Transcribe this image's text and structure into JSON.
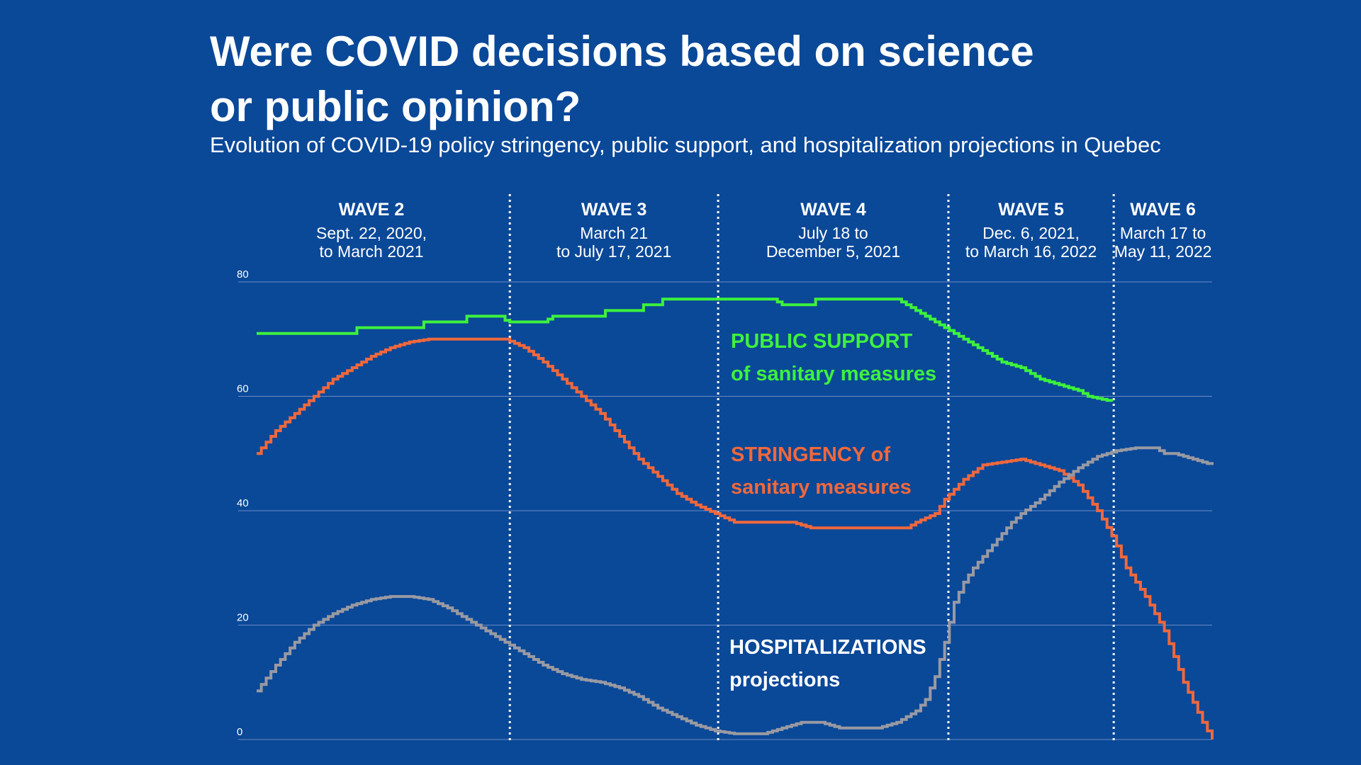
{
  "title_line1": "Were COVID decisions based on science",
  "title_line2": "or public opinion?",
  "subtitle": "Evolution of COVID-19 policy stringency, public support, and hospitalization projections in Quebec",
  "colors": {
    "background": "#0a4898",
    "support": "#3df23d",
    "stringency": "#f0683c",
    "hospitalizations": "#9a9aa2",
    "gridline": "#6b8cc4",
    "divider": "#ffffff"
  },
  "waves": [
    {
      "name": "WAVE 2",
      "date_line1": "Sept. 22, 2020,",
      "date_line2": "to March 2021"
    },
    {
      "name": "WAVE 3",
      "date_line1": "March 21",
      "date_line2": "to July 17, 2021"
    },
    {
      "name": "WAVE 4",
      "date_line1": "July 18 to",
      "date_line2": "December 5, 2021"
    },
    {
      "name": "WAVE 5",
      "date_line1": "Dec. 6, 2021,",
      "date_line2": "to March 16, 2022"
    },
    {
      "name": "WAVE 6",
      "date_line1": "March 17 to",
      "date_line2": "May 11, 2022"
    }
  ],
  "labels": {
    "support_line1": "PUBLIC SUPPORT",
    "support_line2": "of sanitary measures",
    "stringency_line1": "STRINGENCY of",
    "stringency_line2": "sanitary measures",
    "hosp_line1": "HOSPITALIZATIONS",
    "hosp_line2": "projections"
  },
  "chart_data": {
    "type": "line",
    "title": "Were COVID decisions based on science or public opinion?",
    "subtitle": "Evolution of COVID-19 policy stringency, public support, and hospitalization projections in Quebec",
    "xlabel": "",
    "ylabel": "",
    "ylim": [
      0,
      80
    ],
    "yticks": [
      0,
      20,
      40,
      60,
      80
    ],
    "grid": true,
    "x_range": [
      0,
      100
    ],
    "wave_boundaries": [
      26.5,
      48.3,
      72.4,
      89.7
    ],
    "series": [
      {
        "name": "PUBLIC SUPPORT of sanitary measures",
        "color": "#3df23d",
        "x_end": 89.8,
        "points": [
          [
            0,
            71
          ],
          [
            10,
            71
          ],
          [
            10.2,
            72
          ],
          [
            17,
            72
          ],
          [
            17.5,
            73
          ],
          [
            21.5,
            73
          ],
          [
            22,
            74
          ],
          [
            25.5,
            74
          ],
          [
            26.2,
            73
          ],
          [
            30,
            73
          ],
          [
            31,
            74
          ],
          [
            36,
            74
          ],
          [
            36.5,
            75
          ],
          [
            40,
            75
          ],
          [
            40.5,
            76
          ],
          [
            42,
            76
          ],
          [
            42.5,
            77
          ],
          [
            48,
            77
          ],
          [
            54,
            77
          ],
          [
            55,
            76
          ],
          [
            58,
            76
          ],
          [
            58.5,
            77
          ],
          [
            67,
            77
          ],
          [
            68,
            76
          ],
          [
            70,
            74
          ],
          [
            72,
            72
          ],
          [
            74,
            70
          ],
          [
            76,
            68
          ],
          [
            78,
            66
          ],
          [
            80,
            65
          ],
          [
            82,
            63
          ],
          [
            84,
            62
          ],
          [
            86,
            61
          ],
          [
            87,
            60
          ],
          [
            89.8,
            59
          ]
        ]
      },
      {
        "name": "STRINGENCY of sanitary measures",
        "color": "#f0683c",
        "points": [
          [
            0,
            50
          ],
          [
            2,
            54
          ],
          [
            4,
            57
          ],
          [
            6,
            60
          ],
          [
            8,
            63
          ],
          [
            10,
            65
          ],
          [
            12,
            67
          ],
          [
            14,
            68.5
          ],
          [
            16,
            69.5
          ],
          [
            18,
            70
          ],
          [
            26,
            70
          ],
          [
            28,
            68.5
          ],
          [
            30,
            66
          ],
          [
            32,
            63
          ],
          [
            34,
            60
          ],
          [
            36,
            57
          ],
          [
            38,
            53
          ],
          [
            40,
            49
          ],
          [
            42,
            46
          ],
          [
            44,
            43
          ],
          [
            46,
            41
          ],
          [
            48,
            39.5
          ],
          [
            50,
            38
          ],
          [
            56,
            38
          ],
          [
            58,
            37
          ],
          [
            68,
            37
          ],
          [
            69,
            38
          ],
          [
            71,
            39.5
          ],
          [
            72,
            42
          ],
          [
            74,
            45.5
          ],
          [
            76,
            48
          ],
          [
            78,
            48.5
          ],
          [
            80,
            49
          ],
          [
            82,
            48
          ],
          [
            84,
            47
          ],
          [
            86,
            44.5
          ],
          [
            88,
            40
          ],
          [
            89.7,
            35
          ],
          [
            91,
            30
          ],
          [
            93,
            25
          ],
          [
            95,
            19
          ],
          [
            97,
            10
          ],
          [
            99,
            3
          ],
          [
            100,
            0
          ]
        ]
      },
      {
        "name": "HOSPITALIZATIONS projections",
        "color": "#9a9aa2",
        "points": [
          [
            0,
            8.5
          ],
          [
            2,
            13
          ],
          [
            4,
            17
          ],
          [
            6,
            20
          ],
          [
            8,
            22
          ],
          [
            10,
            23.5
          ],
          [
            12,
            24.5
          ],
          [
            14,
            25
          ],
          [
            16,
            25
          ],
          [
            18,
            24.5
          ],
          [
            20,
            23
          ],
          [
            22,
            21
          ],
          [
            24,
            19
          ],
          [
            26,
            17
          ],
          [
            28,
            15
          ],
          [
            30,
            13
          ],
          [
            32,
            11.5
          ],
          [
            34,
            10.5
          ],
          [
            36,
            10
          ],
          [
            38,
            9
          ],
          [
            40,
            7.5
          ],
          [
            42,
            5.5
          ],
          [
            44,
            4
          ],
          [
            46,
            2.5
          ],
          [
            48,
            1.5
          ],
          [
            50,
            1
          ],
          [
            53,
            1
          ],
          [
            55,
            2
          ],
          [
            57,
            3
          ],
          [
            59,
            3
          ],
          [
            61,
            2
          ],
          [
            65,
            2
          ],
          [
            67,
            3
          ],
          [
            69,
            5
          ],
          [
            70,
            7
          ],
          [
            71,
            11
          ],
          [
            72,
            17
          ],
          [
            73,
            24
          ],
          [
            74,
            27.5
          ],
          [
            75,
            30
          ],
          [
            76,
            32
          ],
          [
            77,
            34
          ],
          [
            78,
            36
          ],
          [
            79,
            38
          ],
          [
            80,
            39.5
          ],
          [
            82,
            42
          ],
          [
            84,
            45
          ],
          [
            86,
            47.5
          ],
          [
            88,
            49.5
          ],
          [
            90,
            50.5
          ],
          [
            92,
            51
          ],
          [
            94,
            51
          ],
          [
            95,
            50
          ],
          [
            96,
            50
          ],
          [
            98,
            49
          ],
          [
            100,
            48
          ]
        ]
      }
    ]
  }
}
